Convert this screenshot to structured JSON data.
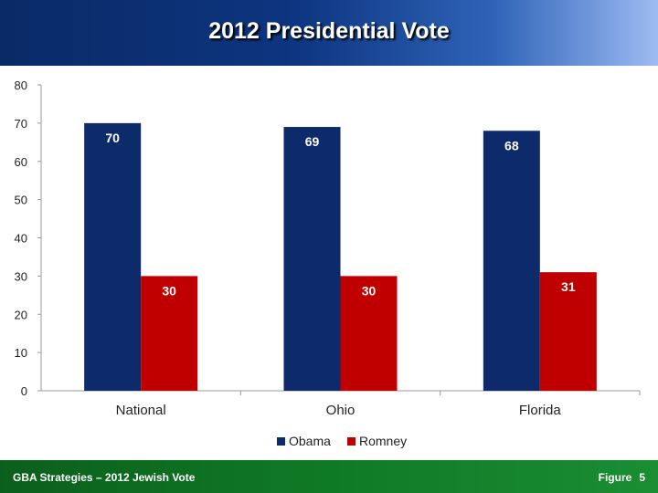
{
  "header": {
    "title": "2012 Presidential Vote"
  },
  "footer": {
    "left": "GBA Strategies – 2012 Jewish Vote",
    "figure_label": "Figure",
    "figure_number": "5"
  },
  "colors": {
    "Obama": "#0d2a6b",
    "Romney": "#c00000"
  },
  "chart_data": {
    "type": "bar",
    "categories": [
      "National",
      "Ohio",
      "Florida"
    ],
    "series": [
      {
        "name": "Obama",
        "values": [
          70,
          69,
          68
        ]
      },
      {
        "name": "Romney",
        "values": [
          30,
          30,
          31
        ]
      }
    ],
    "ylim": [
      0,
      80
    ],
    "yticks": [
      0,
      10,
      20,
      30,
      40,
      50,
      60,
      70,
      80
    ],
    "grid": false,
    "legend": "bottom"
  }
}
